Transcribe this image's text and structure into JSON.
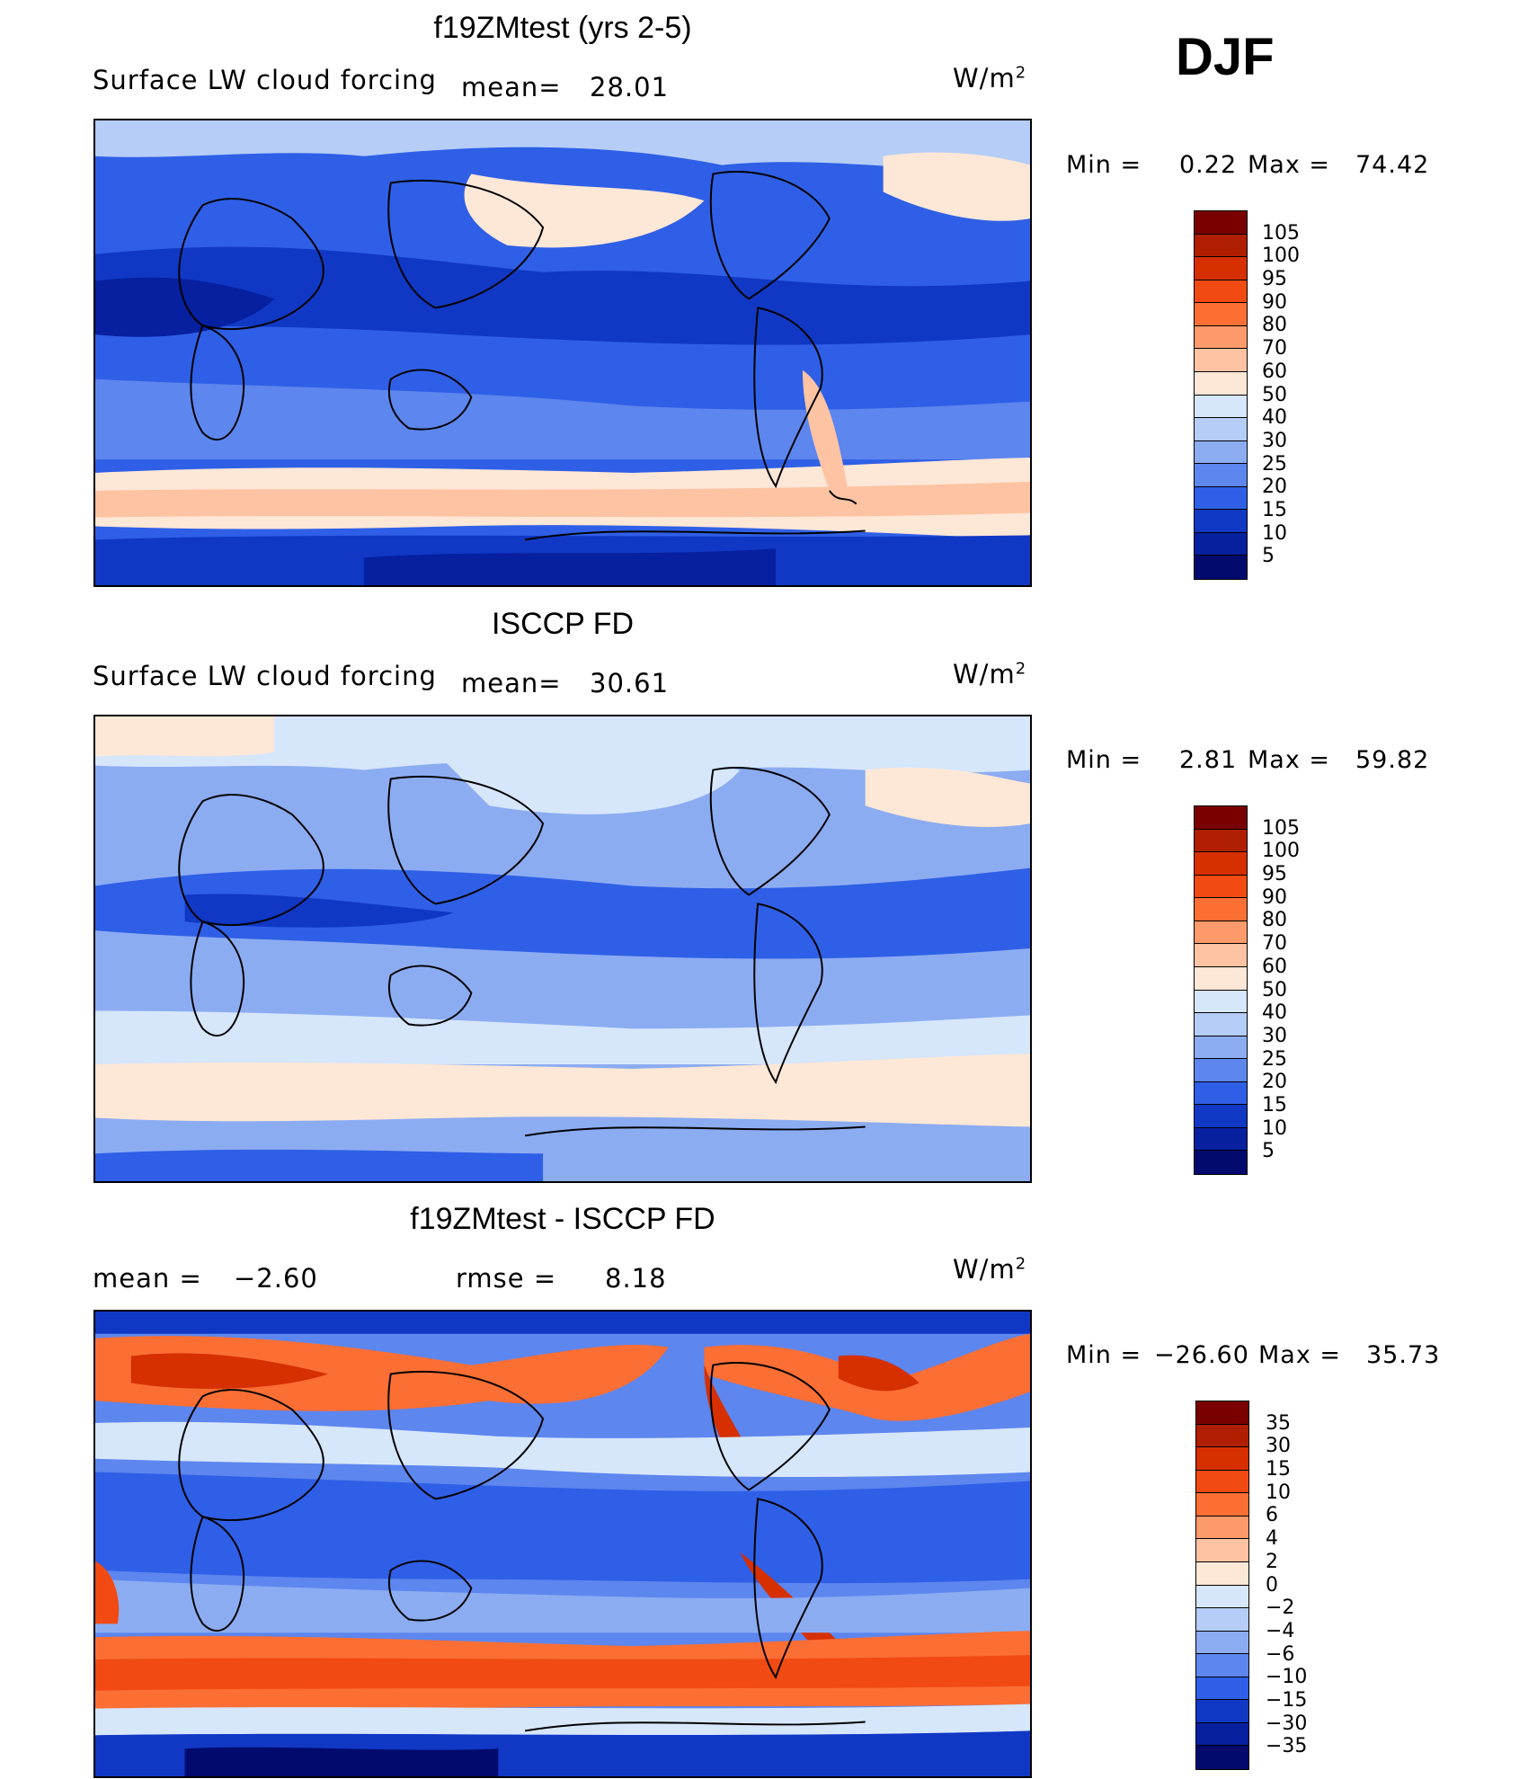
{
  "season": "DJF",
  "panels": [
    {
      "title": "f19ZMtest (yrs 2-5)",
      "left_label": "Surface LW cloud forcing",
      "mean_label": "mean=",
      "mean_value": "28.01",
      "units": "W/m",
      "units_sup": "2",
      "min_label": "Min =",
      "min_value": "0.22",
      "max_label": "Max =",
      "max_value": "74.42",
      "colorbar_labels": [
        "105",
        "100",
        "95",
        "90",
        "80",
        "70",
        "60",
        "50",
        "40",
        "30",
        "25",
        "20",
        "15",
        "10",
        "5"
      ],
      "colorbar_colors": [
        "#7a0000",
        "#b01e00",
        "#d62f00",
        "#f14a12",
        "#fb6e34",
        "#fc9a6c",
        "#fdc3a2",
        "#fde7d7",
        "#d6e6fb",
        "#b5cdf7",
        "#8cacf2",
        "#5d86ee",
        "#2f5fe6",
        "#1038c4",
        "#0620a0",
        "#020a6e"
      ]
    },
    {
      "title": "ISCCP FD",
      "left_label": "Surface LW cloud forcing",
      "mean_label": "mean=",
      "mean_value": "30.61",
      "units": "W/m",
      "units_sup": "2",
      "min_label": "Min =",
      "min_value": "2.81",
      "max_label": "Max =",
      "max_value": "59.82",
      "colorbar_labels": [
        "105",
        "100",
        "95",
        "90",
        "80",
        "70",
        "60",
        "50",
        "40",
        "30",
        "25",
        "20",
        "15",
        "10",
        "5"
      ],
      "colorbar_colors": [
        "#7a0000",
        "#b01e00",
        "#d62f00",
        "#f14a12",
        "#fb6e34",
        "#fc9a6c",
        "#fdc3a2",
        "#fde7d7",
        "#d6e6fb",
        "#b5cdf7",
        "#8cacf2",
        "#5d86ee",
        "#2f5fe6",
        "#1038c4",
        "#0620a0",
        "#020a6e"
      ]
    },
    {
      "title": "f19ZMtest - ISCCP FD",
      "left_label": "mean =",
      "mean_label": "",
      "mean_value": "−2.60",
      "rmse_label": "rmse =",
      "rmse_value": "8.18",
      "units": "W/m",
      "units_sup": "2",
      "min_label": "Min =",
      "min_value": "−26.60",
      "max_label": "Max =",
      "max_value": "35.73",
      "colorbar_labels": [
        "35",
        "30",
        "15",
        "10",
        "6",
        "4",
        "2",
        "0",
        "−2",
        "−4",
        "−6",
        "−10",
        "−15",
        "−30",
        "−35"
      ],
      "colorbar_colors": [
        "#7a0000",
        "#b01e00",
        "#d62f00",
        "#f14a12",
        "#fb6e34",
        "#fc9a6c",
        "#fdc3a2",
        "#fde7d7",
        "#d6e6fb",
        "#b5cdf7",
        "#8cacf2",
        "#5d86ee",
        "#2f5fe6",
        "#1038c4",
        "#0620a0",
        "#020a6e"
      ]
    }
  ]
}
